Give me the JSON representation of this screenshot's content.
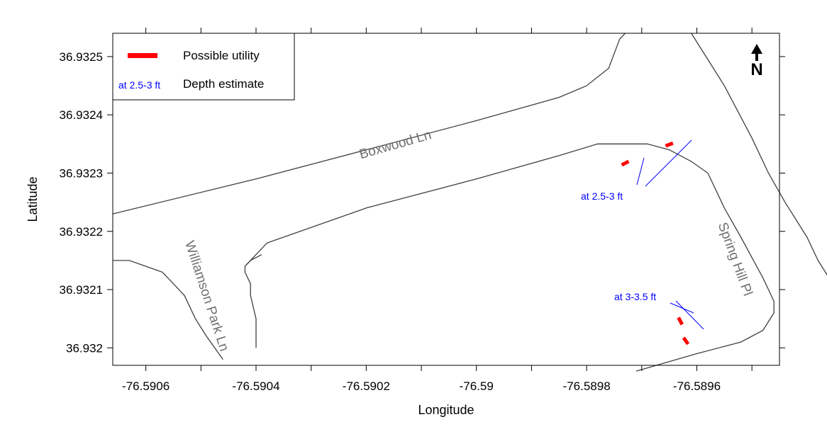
{
  "chart_data": {
    "type": "map",
    "xlabel": "Longitude",
    "ylabel": "Latitude",
    "xlim": [
      -76.59066,
      -76.58945
    ],
    "ylim": [
      36.93197,
      36.93254
    ],
    "x_ticks": [
      {
        "value": -76.5906,
        "label": "-76.5906"
      },
      {
        "value": -76.5904,
        "label": "-76.5904"
      },
      {
        "value": -76.5902,
        "label": "-76.5902"
      },
      {
        "value": -76.59,
        "label": "-76.59"
      },
      {
        "value": -76.5898,
        "label": "-76.5898"
      },
      {
        "value": -76.5896,
        "label": "-76.5896"
      }
    ],
    "x_minor_ticks": [
      -76.5905,
      -76.5903,
      -76.5901,
      -76.5899,
      -76.5897,
      -76.5895
    ],
    "y_ticks": [
      {
        "value": 36.932,
        "label": "36.932"
      },
      {
        "value": 36.9321,
        "label": "36.9321"
      },
      {
        "value": 36.9322,
        "label": "36.9322"
      },
      {
        "value": 36.9323,
        "label": "36.9323"
      },
      {
        "value": 36.9324,
        "label": "36.9324"
      },
      {
        "value": 36.9325,
        "label": "36.9325"
      }
    ],
    "grid": false,
    "legend": {
      "placement": "top-left",
      "entries": [
        {
          "symbol": "red-bar",
          "label": "Possible utility"
        },
        {
          "symbol": "blue-text",
          "sample": "at 2.5-3 ft",
          "label": "Depth estimate"
        }
      ]
    },
    "north_arrow": {
      "label": "N",
      "placement": "top-right"
    },
    "roads": [
      {
        "name": "boxwood-north-edge",
        "points": [
          [
            -76.59066,
            36.93223
          ],
          [
            -76.5904,
            36.93229
          ],
          [
            -76.5902,
            36.93234
          ],
          [
            -76.59,
            36.93239
          ],
          [
            -76.58985,
            36.93243
          ],
          [
            -76.5898,
            36.93245
          ],
          [
            -76.58976,
            36.93248
          ],
          [
            -76.58974,
            36.93253
          ],
          [
            -76.58973,
            36.93254
          ]
        ]
      },
      {
        "name": "boxwood-south-edge",
        "points": [
          [
            -76.59039,
            36.93216
          ],
          [
            -76.59041,
            36.93215
          ],
          [
            -76.59042,
            36.93214
          ],
          [
            -76.59042,
            36.93213
          ],
          [
            -76.59041,
            36.93211
          ],
          [
            -76.59041,
            36.93209
          ],
          [
            -76.5904,
            36.93205
          ],
          [
            -76.5904,
            36.932
          ]
        ]
      },
      {
        "name": "boxwood-inner",
        "points": [
          [
            -76.59042,
            36.93214
          ],
          [
            -76.59038,
            36.93218
          ],
          [
            -76.59032,
            36.9322
          ],
          [
            -76.5902,
            36.93224
          ],
          [
            -76.59,
            36.93229
          ],
          [
            -76.58985,
            36.93233
          ],
          [
            -76.58978,
            36.93235
          ],
          [
            -76.58969,
            36.93235
          ],
          [
            -76.58965,
            36.93234
          ],
          [
            -76.58961,
            36.93232
          ],
          [
            -76.58958,
            36.9323
          ],
          [
            -76.58957,
            36.93228
          ],
          [
            -76.58955,
            36.93224
          ]
        ]
      },
      {
        "name": "spring-hill-west-edge",
        "points": [
          [
            -76.58955,
            36.93224
          ],
          [
            -76.58952,
            36.93219
          ],
          [
            -76.58948,
            36.93212
          ],
          [
            -76.58947,
            36.9321
          ],
          [
            -76.58946,
            36.93208
          ],
          [
            -76.58946,
            36.93206
          ],
          [
            -76.58948,
            36.93203
          ],
          [
            -76.58952,
            36.93201
          ],
          [
            -76.5896,
            36.93199
          ],
          [
            -76.58971,
            36.93196
          ]
        ]
      },
      {
        "name": "spring-hill-east-edge",
        "points": [
          [
            -76.58961,
            36.93254
          ],
          [
            -76.58955,
            36.93245
          ],
          [
            -76.5895,
            36.93236
          ],
          [
            -76.58947,
            36.9323
          ],
          [
            -76.58944,
            36.93225
          ],
          [
            -76.5894,
            36.93219
          ],
          [
            -76.58938,
            36.93215
          ],
          [
            -76.58936,
            36.93212
          ],
          [
            -76.58934,
            36.93208
          ],
          [
            -76.58932,
            36.93204
          ],
          [
            -76.5893,
            36.93201
          ],
          [
            -76.58928,
            36.93198
          ]
        ]
      },
      {
        "name": "williamson-west-edge",
        "points": [
          [
            -76.59066,
            36.93215
          ],
          [
            -76.59063,
            36.93215
          ],
          [
            -76.5906,
            36.93214
          ],
          [
            -76.59057,
            36.93213
          ],
          [
            -76.59055,
            36.93211
          ],
          [
            -76.59053,
            36.93209
          ],
          [
            -76.59051,
            36.93205
          ],
          [
            -76.59049,
            36.93202
          ],
          [
            -76.59046,
            36.93198
          ]
        ]
      }
    ],
    "utilities": [
      {
        "lon": -76.58973,
        "lat": 36.932317,
        "angle_deg": -28
      },
      {
        "lon": -76.58965,
        "lat": 36.932349,
        "angle_deg": -20
      },
      {
        "lon": -76.58963,
        "lat": 36.932046,
        "angle_deg": 62
      },
      {
        "lon": -76.58962,
        "lat": 36.932012,
        "angle_deg": 55
      }
    ],
    "depth_annotations": [
      {
        "text": "at 2.5-3 ft",
        "label_lon": -76.59,
        "label_lat": 36.9321
      },
      {
        "text": "at 3-3.5 ft",
        "label_lon": -76.59,
        "label_lat": 36.9321
      }
    ],
    "street_labels": [
      {
        "text": "Boxwood Ln"
      },
      {
        "text": "Williamson Park Ln"
      },
      {
        "text": "Spring Hill Pl"
      }
    ]
  }
}
